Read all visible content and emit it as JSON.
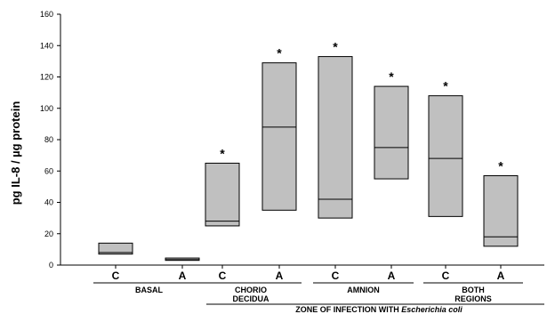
{
  "chart_data": {
    "type": "box",
    "ylabel": "pg IL-8 / µg protein",
    "xlabel_prefix": "ZONE OF INFECTION WITH ",
    "xlabel_italic": "Escherichia coli",
    "ylim": [
      0,
      160
    ],
    "yticks": [
      0,
      20,
      40,
      60,
      80,
      100,
      120,
      140,
      160
    ],
    "grid": false,
    "categories": [
      "C",
      "A",
      "C",
      "A",
      "C",
      "A",
      "C",
      "A"
    ],
    "groups": [
      {
        "label_lines": [
          "BASAL"
        ],
        "members": [
          0,
          1
        ]
      },
      {
        "label_lines": [
          "CHORIO",
          "DECIDUA"
        ],
        "members": [
          2,
          3
        ]
      },
      {
        "label_lines": [
          "AMNION"
        ],
        "members": [
          4,
          5
        ]
      },
      {
        "label_lines": [
          "BOTH",
          "REGIONS"
        ],
        "members": [
          6,
          7
        ]
      }
    ],
    "boxes": [
      {
        "low": 7,
        "median": 8,
        "high": 14,
        "significant": false
      },
      {
        "low": 3,
        "median": 3.5,
        "high": 4.5,
        "significant": false
      },
      {
        "low": 25,
        "median": 28,
        "high": 65,
        "significant": true
      },
      {
        "low": 35,
        "median": 88,
        "high": 129,
        "significant": true
      },
      {
        "low": 30,
        "median": 42,
        "high": 133,
        "significant": true
      },
      {
        "low": 55,
        "median": 75,
        "high": 114,
        "significant": true
      },
      {
        "low": 31,
        "median": 68,
        "high": 108,
        "significant": true
      },
      {
        "low": 12,
        "median": 18,
        "high": 57,
        "significant": true
      }
    ],
    "significance_marker": "*"
  }
}
